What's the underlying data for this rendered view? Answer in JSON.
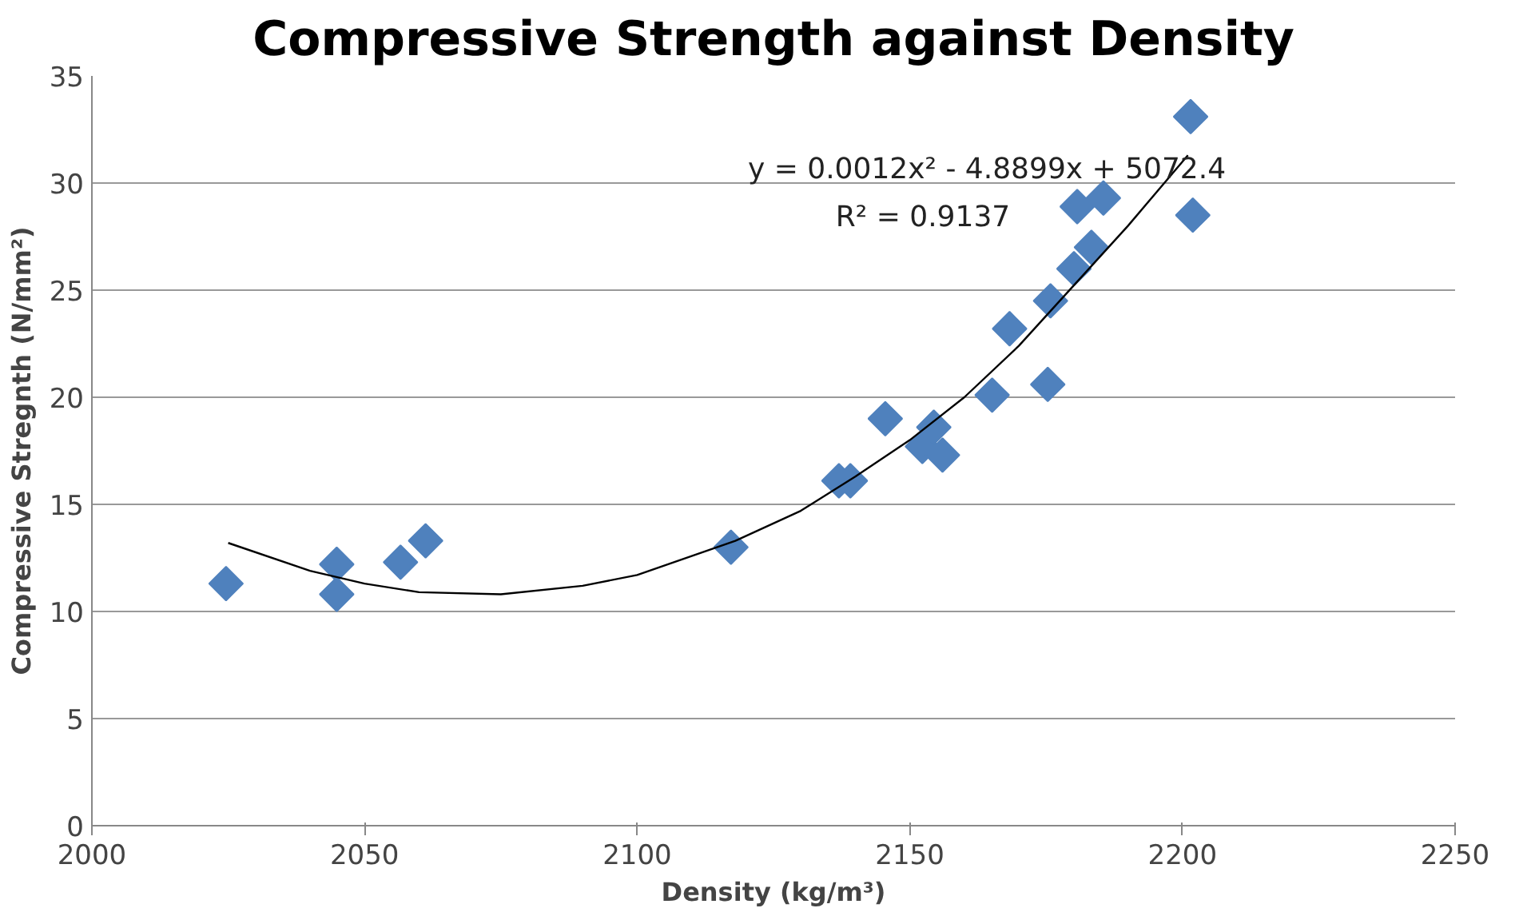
{
  "chart_data": {
    "type": "scatter",
    "title": "Compressive Strength against Density",
    "xlabel": "Density (kg/m³)",
    "ylabel": "Compressive Stregnth (N/mm²)",
    "annotations": [
      "y = 0.0012x² - 4.8899x + 5072.4",
      "R² = 0.9137"
    ],
    "xlim": [
      2000,
      2250
    ],
    "xticks": [
      2000,
      2050,
      2100,
      2150,
      2200,
      2250
    ],
    "ylim": [
      0,
      35
    ],
    "yticks": [
      0,
      5,
      10,
      15,
      20,
      25,
      30,
      35
    ],
    "grid": "y",
    "marker": "diamond",
    "series": [
      {
        "color": "#4f81bd",
        "x": [
          2024.6,
          2044.9,
          2044.9,
          2056.6,
          2061.2,
          2117.2,
          2137.0,
          2139.1,
          2145.5,
          2152.3,
          2154.4,
          2156.0,
          2165.1,
          2168.3,
          2175.3,
          2175.8,
          2180.1,
          2180.7,
          2183.3,
          2185.5,
          2201.5,
          2201.9
        ],
        "values": [
          11.3,
          12.2,
          10.8,
          12.3,
          13.3,
          13.0,
          16.1,
          16.1,
          19.0,
          17.7,
          18.6,
          17.3,
          20.1,
          23.2,
          20.6,
          24.5,
          26.0,
          28.9,
          27.0,
          29.3,
          33.1,
          28.5
        ]
      },
      {
        "type": "line",
        "color": "#000000",
        "marker": "none",
        "x": [
          2025,
          2040,
          2050,
          2060,
          2075,
          2090,
          2100,
          2118,
          2130,
          2140,
          2150,
          2160,
          2170,
          2180,
          2190,
          2201
        ],
        "values": [
          13.2,
          11.9,
          11.3,
          10.9,
          10.8,
          11.2,
          11.7,
          13.3,
          14.7,
          16.3,
          18.0,
          20.0,
          22.4,
          25.2,
          28.0,
          31.3
        ]
      }
    ]
  }
}
